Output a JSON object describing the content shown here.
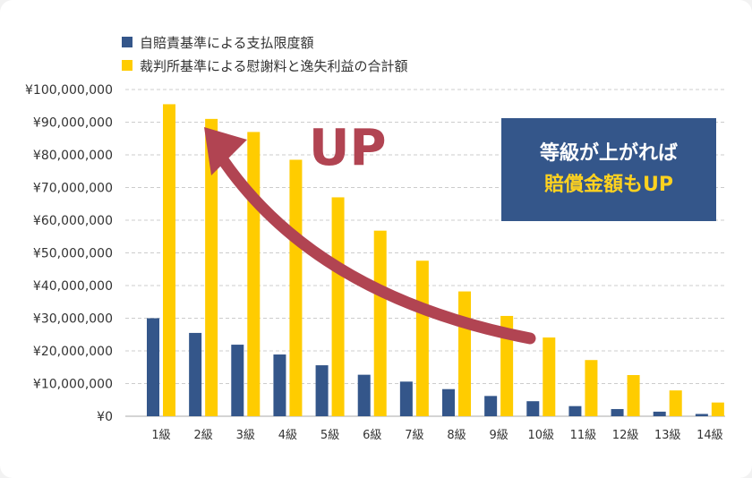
{
  "chart_data": {
    "type": "bar",
    "categories": [
      "1",
      "2",
      "3",
      "4",
      "5",
      "6",
      "7",
      "8",
      "9",
      "10",
      "11",
      "12",
      "13",
      "14"
    ],
    "category_suffix": "級",
    "series": [
      {
        "name": "自賠責基準による支払限度額",
        "color": "#34568a",
        "values": [
          30000000,
          25500000,
          21900000,
          18900000,
          15600000,
          12700000,
          10600000,
          8300000,
          6200000,
          4600000,
          3100000,
          2200000,
          1400000,
          700000
        ]
      },
      {
        "name": "裁判所基準による慰謝料と逸失利益の合計額",
        "color": "#ffcc00",
        "values": [
          95500000,
          91000000,
          87000000,
          78500000,
          67000000,
          56800000,
          47600000,
          38200000,
          30700000,
          24100000,
          17200000,
          12600000,
          7900000,
          4200000
        ]
      }
    ],
    "ylim": [
      0,
      100000000
    ],
    "yticks": [
      "¥0",
      "¥10,000,000",
      "¥20,000,000",
      "¥30,000,000",
      "¥40,000,000",
      "¥50,000,000",
      "¥60,000,000",
      "¥70,000,000",
      "¥80,000,000",
      "¥90,000,000",
      "¥100,000,000"
    ],
    "grid": true,
    "legend_position": "top-left"
  },
  "callout": {
    "line1": "等級が上がれば",
    "line2": "賠償金額もUP"
  },
  "annotation": {
    "text": "UP",
    "arrow_color": "#b14452"
  }
}
